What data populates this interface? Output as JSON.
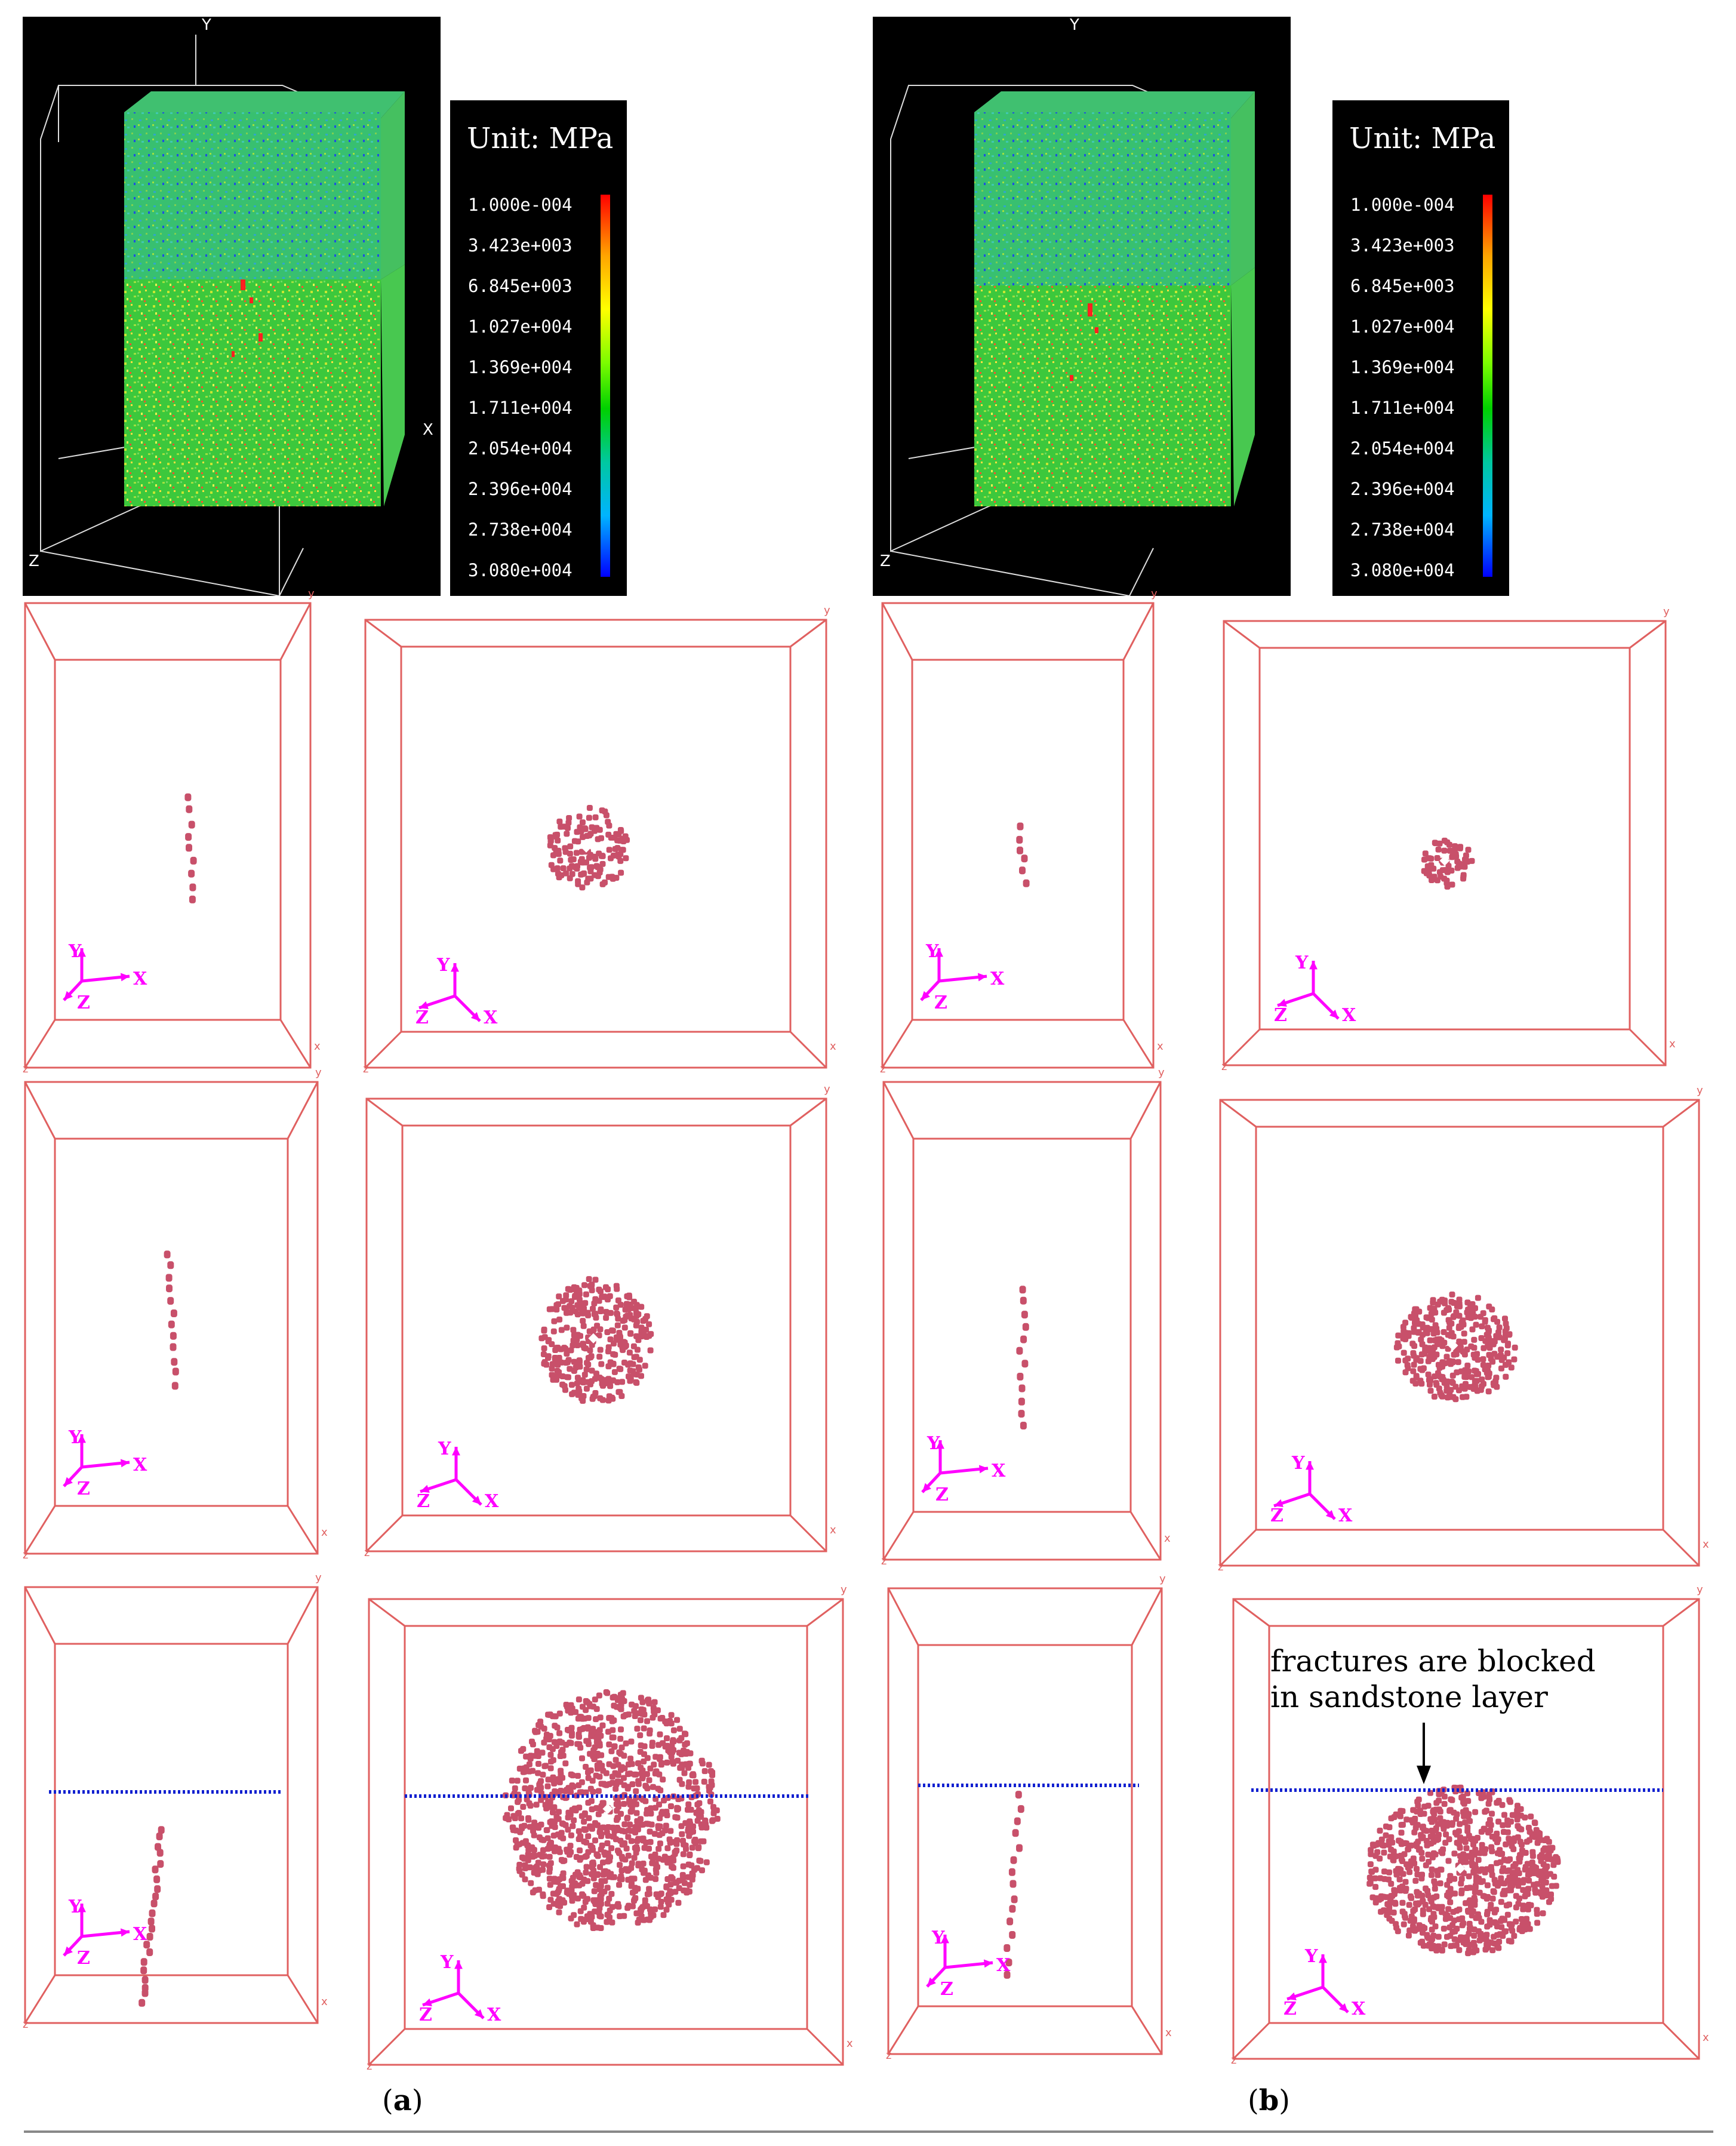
{
  "legend": {
    "title": "Unit: MPa",
    "ticks": [
      "1.000e-004",
      "3.423e+003",
      "6.845e+003",
      "1.027e+004",
      "1.369e+004",
      "1.711e+004",
      "2.054e+004",
      "2.396e+004",
      "2.738e+004",
      "3.080e+004"
    ]
  },
  "axis_letters": {
    "x": "X",
    "y": "Y",
    "z": "Z"
  },
  "small_axis_letters": {
    "x": "x",
    "y": "y",
    "z": "z"
  },
  "annotation": {
    "line1": "fractures  are  blocked",
    "line2": "in sandstone layer"
  },
  "captions": {
    "a_open": "(",
    "a_letter": "a",
    "a_close": ")",
    "b_open": "(",
    "b_letter": "b",
    "b_close": ")"
  },
  "colors": {
    "frame": "#e06060",
    "fracture": "#c8506a",
    "triad": "#ff00ff",
    "interface": "#1020d0",
    "background_3d": "#000000"
  }
}
